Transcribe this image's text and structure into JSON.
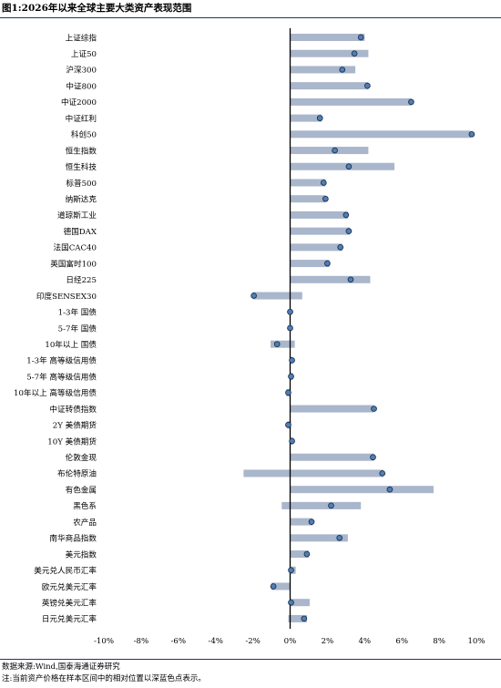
{
  "figure": {
    "title": "图1:2026年以来全球主要大类资产表现范围",
    "source": "数据来源:Wind,国泰海通证券研究",
    "note": "注:当前资产价格在样本区间中的相对位置以深蓝色点表示。"
  },
  "colors": {
    "bar": "#a9b6cb",
    "dot": "#4f7fb5",
    "dot_stroke": "#1d3150",
    "axis": "#000000",
    "rule": "#1f3b5c"
  },
  "chart_data": {
    "type": "bar",
    "orientation": "horizontal",
    "title": "",
    "xlabel": "",
    "ylabel": "",
    "xlim": [
      -10,
      10
    ],
    "ticks": [
      -10,
      -8,
      -6,
      -4,
      -2,
      0,
      2,
      4,
      6,
      8,
      10
    ],
    "tick_labels": [
      "-10%",
      "-8%",
      "-6%",
      "-4%",
      "-2%",
      "0%",
      "2%",
      "4%",
      "6%",
      "8%",
      "10%"
    ],
    "grid": false,
    "series": [
      {
        "kind": "range"
      },
      {
        "kind": "current"
      }
    ],
    "categories": [
      "上证综指",
      "上证50",
      "沪深300",
      "中证800",
      "中证2000",
      "中证红利",
      "科创50",
      "恒生指数",
      "恒生科技",
      "标普500",
      "纳斯达克",
      "道琼斯工业",
      "德国DAX",
      "法国CAC40",
      "英国富时100",
      "日经225",
      "印度SENSEX30",
      "1-3年 国债",
      "5-7年 国债",
      "10年以上 国债",
      "1-3年 高等级信用债",
      "5-7年 高等级信用债",
      "10年以上 高等级信用债",
      "中证转债指数",
      "2Y 美债期货",
      "10Y 美债期货",
      "伦敦金现",
      "布伦特原油",
      "有色金属",
      "黑色系",
      "农产品",
      "南华商品指数",
      "美元指数",
      "美元兑人民币汇率",
      "欧元兑美元汇率",
      "英镑兑美元汇率",
      "日元兑美元汇率"
    ],
    "min": [
      0,
      0,
      0,
      0,
      0,
      0,
      0,
      0,
      0,
      0,
      0,
      0,
      0,
      0,
      0,
      0,
      -2.0,
      0,
      0,
      -1.05,
      0,
      0,
      -0.2,
      0,
      -0.15,
      0,
      0,
      -2.5,
      0,
      -0.45,
      0,
      0,
      0,
      0,
      -1.0,
      0,
      -0.1
    ],
    "max": [
      4.0,
      4.2,
      3.5,
      4.2,
      6.5,
      1.7,
      9.7,
      4.2,
      5.6,
      1.9,
      1.9,
      3.1,
      3.2,
      2.8,
      2.1,
      4.3,
      0.65,
      0,
      0,
      0.25,
      0.1,
      0.15,
      0,
      4.5,
      0.05,
      0.15,
      4.5,
      5.0,
      7.7,
      3.8,
      1.2,
      3.1,
      1.0,
      0.3,
      0,
      1.05,
      0.9
    ],
    "current": [
      3.8,
      3.45,
      2.8,
      4.15,
      6.5,
      1.6,
      9.75,
      2.4,
      3.15,
      1.8,
      1.9,
      3.0,
      3.15,
      2.7,
      2.0,
      3.25,
      -1.95,
      0.0,
      0.0,
      -0.7,
      0.1,
      0.05,
      -0.1,
      4.5,
      -0.1,
      0.1,
      4.45,
      4.95,
      5.35,
      2.2,
      1.15,
      2.65,
      0.9,
      0.05,
      -0.9,
      0.05,
      0.75
    ]
  }
}
